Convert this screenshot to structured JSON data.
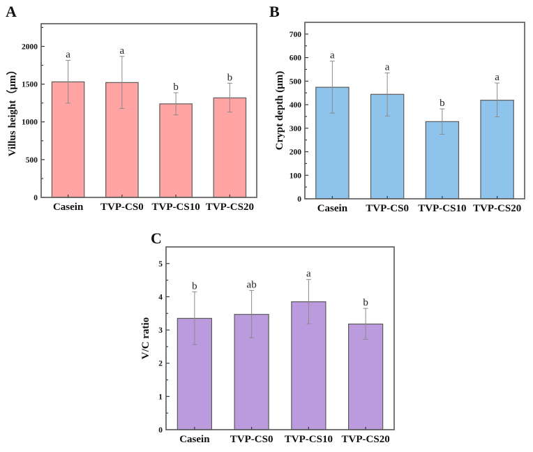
{
  "chart_data": [
    {
      "panel": "A",
      "type": "bar",
      "title": "",
      "xlabel": "",
      "ylabel": "Villus height（μm）",
      "categories": [
        "Casein",
        "TVP-CS0",
        "TVP-CS10",
        "TVP-CS20"
      ],
      "values": [
        1530,
        1521,
        1239,
        1318
      ],
      "error_upper": [
        1815,
        1868,
        1386,
        1512
      ],
      "error_lower": [
        1248,
        1178,
        1092,
        1130
      ],
      "significance": [
        "a",
        "a",
        "b",
        "b"
      ],
      "ylim": [
        0,
        2300
      ],
      "yticks": [
        0,
        500,
        1000,
        1500,
        2000
      ],
      "ytick_labels": [
        "0",
        "500",
        "1000",
        "1500",
        "2000"
      ],
      "minor_ticks": true,
      "grid": false,
      "legend": "none",
      "color": "#FFA3A3"
    },
    {
      "panel": "B",
      "type": "bar",
      "title": "",
      "xlabel": "",
      "ylabel": "Crypt depth (μm)",
      "categories": [
        "Casein",
        "TVP-CS0",
        "TVP-CS10",
        "TVP-CS20"
      ],
      "values": [
        474,
        444,
        328,
        419
      ],
      "error_upper": [
        585,
        535,
        382,
        492
      ],
      "error_lower": [
        364,
        352,
        274,
        348
      ],
      "significance": [
        "a",
        "a",
        "b",
        "a"
      ],
      "ylim": [
        0,
        750
      ],
      "yticks": [
        0,
        100,
        200,
        300,
        400,
        500,
        600,
        700
      ],
      "ytick_labels": [
        "0",
        "100",
        "200",
        "300",
        "400",
        "500",
        "600",
        "700"
      ],
      "minor_ticks": true,
      "grid": false,
      "legend": "none",
      "color": "#8EC4EC"
    },
    {
      "panel": "C",
      "type": "bar",
      "title": "",
      "xlabel": "",
      "ylabel": "V/C ratio",
      "categories": [
        "Casein",
        "TVP-CS0",
        "TVP-CS10",
        "TVP-CS20"
      ],
      "values": [
        3.35,
        3.47,
        3.85,
        3.18
      ],
      "error_upper": [
        4.15,
        4.19,
        4.52,
        3.65
      ],
      "error_lower": [
        2.56,
        2.77,
        3.19,
        2.72
      ],
      "significance": [
        "b",
        "ab",
        "a",
        "b"
      ],
      "ylim": [
        0,
        5.5
      ],
      "yticks": [
        0,
        1,
        2,
        3,
        4,
        5
      ],
      "ytick_labels": [
        "0",
        "1",
        "2",
        "3",
        "4",
        "5"
      ],
      "minor_ticks": true,
      "grid": false,
      "legend": "none",
      "color": "#BB9ADD"
    }
  ]
}
